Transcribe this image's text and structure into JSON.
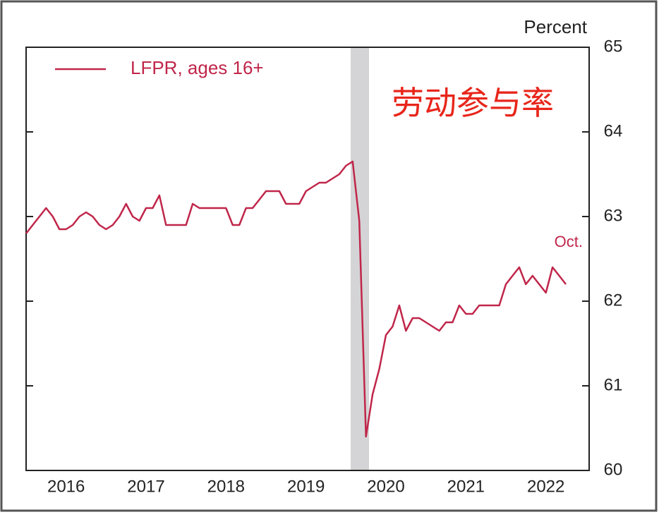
{
  "chart_data": {
    "type": "line",
    "y_axis_label": "Percent",
    "annotation": "Oct.",
    "overlay_text": "劳动参与率",
    "categories": [
      null,
      null,
      null,
      null,
      null,
      null,
      "2016",
      null,
      null,
      null,
      null,
      null,
      null,
      null,
      null,
      null,
      null,
      null,
      "2017",
      null,
      null,
      null,
      null,
      null,
      null,
      null,
      null,
      null,
      null,
      null,
      "2018",
      null,
      null,
      null,
      null,
      null,
      null,
      null,
      null,
      null,
      null,
      null,
      "2019",
      null,
      null,
      null,
      null,
      null,
      null,
      null,
      null,
      null,
      null,
      null,
      "2020",
      null,
      null,
      null,
      null,
      null,
      null,
      null,
      null,
      null,
      null,
      null,
      "2021",
      null,
      null,
      null,
      null,
      null,
      null,
      null,
      null,
      null,
      null,
      null,
      "2022",
      null,
      null,
      null
    ],
    "series": [
      {
        "name": "LFPR, ages 16+",
        "color": "#c0264a",
        "values": [
          62.8,
          62.9,
          63.0,
          63.1,
          63.0,
          62.85,
          62.85,
          62.9,
          63.0,
          63.05,
          63.0,
          62.9,
          62.85,
          62.9,
          63.0,
          63.15,
          63.0,
          62.95,
          63.1,
          63.1,
          63.25,
          62.9,
          62.9,
          62.9,
          62.9,
          63.15,
          63.1,
          63.1,
          63.1,
          63.1,
          63.1,
          62.9,
          62.9,
          63.1,
          63.1,
          63.2,
          63.3,
          63.3,
          63.3,
          63.15,
          63.15,
          63.15,
          63.3,
          63.35,
          63.4,
          63.4,
          63.45,
          63.5,
          63.6,
          63.65,
          62.95,
          60.4,
          60.9,
          61.2,
          61.6,
          61.7,
          61.95,
          61.65,
          61.8,
          61.8,
          61.75,
          61.7,
          61.65,
          61.75,
          61.75,
          61.95,
          61.85,
          61.85,
          61.95,
          61.95,
          61.95,
          61.95,
          62.2,
          62.3,
          62.4,
          62.2,
          62.3,
          62.2,
          62.1,
          62.4,
          62.3,
          62.2
        ]
      }
    ],
    "ylim": [
      60,
      65
    ],
    "yticks": [
      60,
      61,
      62,
      63,
      64,
      65
    ],
    "grid": false
  }
}
